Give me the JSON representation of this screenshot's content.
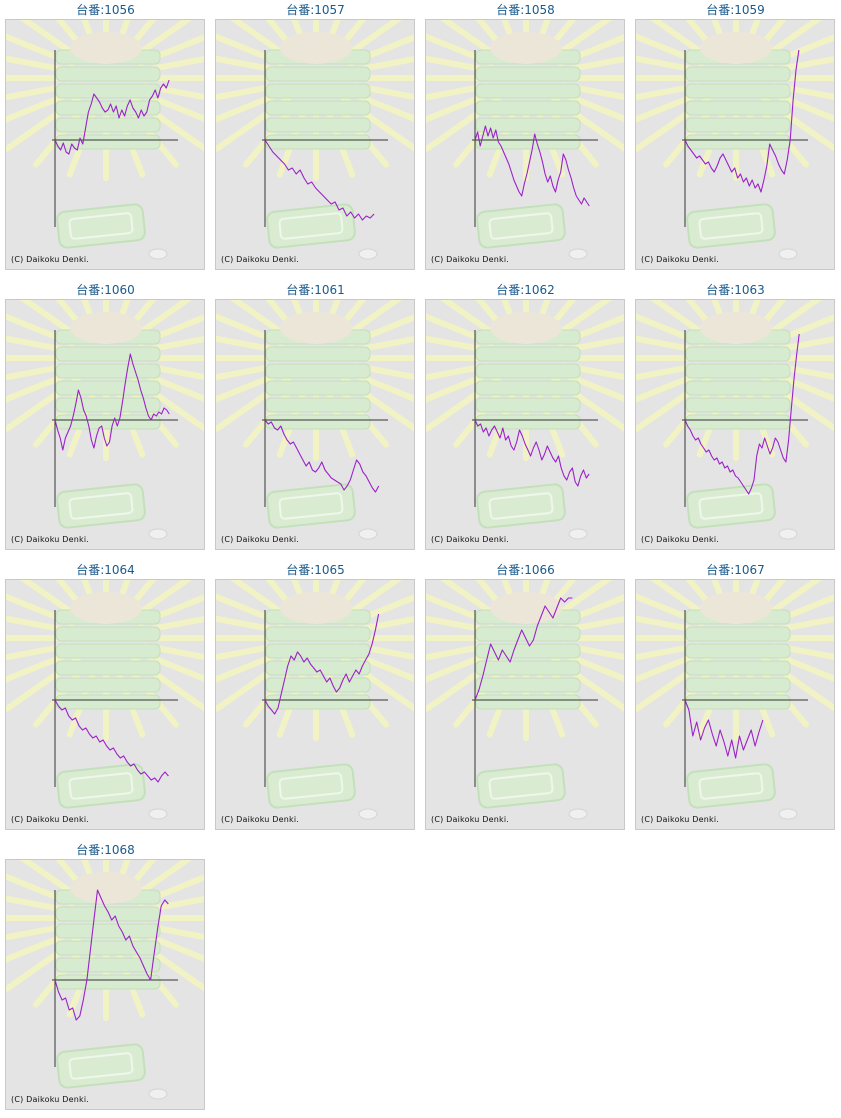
{
  "copyright": "(C) Daikoku Denki.",
  "colors": {
    "line": "#9b22c8",
    "axis": "#333333",
    "title": "#1a5a8c",
    "background": "#e4e4e4"
  },
  "chart_data": [
    {
      "type": "line",
      "title": "台番:1056",
      "y": [
        0,
        -6,
        -10,
        -3,
        -12,
        -14,
        -4,
        -8,
        -10,
        2,
        -4,
        12,
        28,
        36,
        46,
        42,
        38,
        32,
        28,
        30,
        36,
        28,
        34,
        22,
        30,
        24,
        34,
        40,
        32,
        28,
        22,
        30,
        24,
        28,
        40,
        44,
        50,
        42,
        52,
        56,
        52,
        60
      ]
    },
    {
      "type": "line",
      "title": "台番:1057",
      "y": [
        0,
        -6,
        -12,
        -16,
        -20,
        -24,
        -30,
        -28,
        -34,
        -30,
        -38,
        -44,
        -42,
        -48,
        -52,
        -56,
        -60,
        -64,
        -62,
        -70,
        -68,
        -76,
        -72,
        -78,
        -74,
        -80,
        -76,
        -78,
        -74
      ]
    },
    {
      "type": "line",
      "title": "台番:1058",
      "y": [
        0,
        8,
        -6,
        4,
        14,
        4,
        12,
        2,
        10,
        -2,
        -6,
        -12,
        -18,
        -24,
        -32,
        -40,
        -46,
        -52,
        -56,
        -44,
        -34,
        -22,
        -10,
        6,
        -4,
        -12,
        -22,
        -34,
        -42,
        -36,
        -46,
        -52,
        -40,
        -32,
        -14,
        -20,
        -30,
        -38,
        -48,
        -56,
        -60,
        -64,
        -58,
        -62,
        -66
      ]
    },
    {
      "type": "line",
      "title": "台番:1059",
      "y": [
        0,
        -6,
        -10,
        -14,
        -18,
        -16,
        -20,
        -24,
        -22,
        -28,
        -32,
        -26,
        -18,
        -14,
        -20,
        -26,
        -32,
        -28,
        -38,
        -34,
        -42,
        -38,
        -46,
        -40,
        -48,
        -44,
        -52,
        -40,
        -26,
        -4,
        -10,
        -16,
        -24,
        -30,
        -34,
        -20,
        0,
        40,
        70,
        90
      ]
    },
    {
      "type": "line",
      "title": "台番:1060",
      "y": [
        0,
        -10,
        -18,
        -30,
        -18,
        -12,
        -6,
        4,
        16,
        30,
        22,
        10,
        4,
        -6,
        -20,
        -28,
        -16,
        -8,
        -6,
        -18,
        -26,
        -22,
        -6,
        2,
        -6,
        2,
        18,
        36,
        52,
        66,
        56,
        48,
        40,
        30,
        22,
        12,
        4,
        0,
        6,
        4,
        8,
        6,
        12,
        10,
        6
      ]
    },
    {
      "type": "line",
      "title": "台番:1061",
      "y": [
        0,
        -4,
        -2,
        -8,
        -10,
        -6,
        -14,
        -20,
        -24,
        -22,
        -28,
        -34,
        -40,
        -46,
        -42,
        -50,
        -52,
        -48,
        -42,
        -50,
        -54,
        -58,
        -60,
        -62,
        -64,
        -70,
        -66,
        -60,
        -50,
        -40,
        -44,
        -52,
        -56,
        -62,
        -68,
        -72,
        -66
      ]
    },
    {
      "type": "line",
      "title": "台番:1062",
      "y": [
        0,
        -6,
        -4,
        -12,
        -8,
        -16,
        -10,
        -6,
        -12,
        -18,
        -8,
        -20,
        -16,
        -26,
        -30,
        -22,
        -10,
        -16,
        -24,
        -30,
        -36,
        -28,
        -22,
        -30,
        -40,
        -34,
        -26,
        -32,
        -38,
        -42,
        -36,
        -48,
        -56,
        -60,
        -52,
        -48,
        -62,
        -66,
        -56,
        -50,
        -58,
        -54
      ]
    },
    {
      "type": "line",
      "title": "台番:1063",
      "y": [
        0,
        -6,
        -10,
        -16,
        -20,
        -18,
        -24,
        -28,
        -32,
        -30,
        -36,
        -40,
        -38,
        -44,
        -42,
        -48,
        -46,
        -52,
        -50,
        -56,
        -58,
        -62,
        -66,
        -70,
        -74,
        -68,
        -60,
        -36,
        -24,
        -28,
        -18,
        -26,
        -34,
        -28,
        -18,
        -22,
        -30,
        -38,
        -42,
        -20,
        10,
        40,
        64,
        86
      ]
    },
    {
      "type": "line",
      "title": "台番:1064",
      "y": [
        0,
        -6,
        -10,
        -8,
        -16,
        -20,
        -18,
        -26,
        -30,
        -28,
        -34,
        -38,
        -36,
        -42,
        -40,
        -46,
        -50,
        -48,
        -54,
        -58,
        -56,
        -62,
        -66,
        -64,
        -70,
        -74,
        -72,
        -76,
        -80,
        -78,
        -82,
        -76,
        -72,
        -76
      ]
    },
    {
      "type": "line",
      "title": "台番:1065",
      "y": [
        0,
        -6,
        -10,
        -14,
        -8,
        6,
        20,
        34,
        44,
        40,
        48,
        44,
        38,
        42,
        36,
        32,
        28,
        30,
        24,
        18,
        22,
        14,
        8,
        12,
        20,
        26,
        18,
        24,
        30,
        26,
        34,
        40,
        46,
        56,
        70,
        86
      ]
    },
    {
      "type": "line",
      "title": "台番:1066",
      "y": [
        0,
        10,
        24,
        40,
        56,
        48,
        40,
        50,
        44,
        38,
        50,
        60,
        70,
        62,
        54,
        60,
        74,
        84,
        94,
        88,
        82,
        92,
        104,
        98,
        108,
        104
      ]
    },
    {
      "type": "line",
      "title": "台番:1067",
      "y": [
        0,
        -10,
        -36,
        -22,
        -40,
        -28,
        -20,
        -34,
        -46,
        -30,
        -42,
        -56,
        -40,
        -58,
        -36,
        -50,
        -40,
        -30,
        -46,
        -32,
        -20
      ]
    },
    {
      "type": "line",
      "title": "台番:1068",
      "y": [
        0,
        -12,
        -20,
        -18,
        -30,
        -28,
        -40,
        -36,
        -20,
        0,
        30,
        60,
        90,
        82,
        74,
        68,
        60,
        64,
        54,
        48,
        40,
        44,
        34,
        28,
        22,
        14,
        6,
        0,
        26,
        52,
        74,
        80,
        76
      ]
    }
  ]
}
